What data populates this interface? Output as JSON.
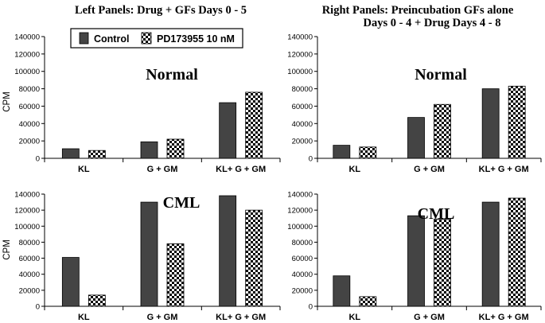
{
  "figure": {
    "left_heading": "Left Panels: Drug + GFs Days 0 - 5",
    "right_heading_line1": "Right Panels: Preincubation GFs alone",
    "right_heading_line2": "Days 0 - 4 + Drug Days 4 - 8",
    "legend": [
      {
        "name": "Control",
        "color": "#444444",
        "pattern": "solid"
      },
      {
        "name": "PD173955 10 nM",
        "color": "#000000",
        "pattern": "checker"
      }
    ]
  },
  "chart_data": [
    {
      "type": "bar",
      "panel": "top-left",
      "title": "Normal",
      "ylabel": "CPM",
      "categories": [
        "KL",
        "G + GM",
        "KL+ G + GM"
      ],
      "ylim": [
        0,
        140000
      ],
      "yticks": [
        0,
        20000,
        40000,
        60000,
        80000,
        100000,
        120000,
        140000
      ],
      "series": [
        {
          "name": "Control",
          "values": [
            11000,
            19000,
            64000
          ]
        },
        {
          "name": "PD173955 10 nM",
          "values": [
            9000,
            22000,
            76000
          ]
        }
      ]
    },
    {
      "type": "bar",
      "panel": "top-right",
      "title": "Normal",
      "ylabel": "",
      "categories": [
        "KL",
        "G + GM",
        "KL+ G + GM"
      ],
      "ylim": [
        0,
        140000
      ],
      "yticks": [
        0,
        20000,
        40000,
        60000,
        80000,
        100000,
        120000,
        140000
      ],
      "series": [
        {
          "name": "Control",
          "values": [
            15000,
            47000,
            80000
          ]
        },
        {
          "name": "PD173955 10 nM",
          "values": [
            13000,
            62000,
            83000
          ]
        }
      ]
    },
    {
      "type": "bar",
      "panel": "bottom-left",
      "title": "CML",
      "ylabel": "CPM",
      "categories": [
        "KL",
        "G + GM",
        "KL+ G + GM"
      ],
      "ylim": [
        0,
        140000
      ],
      "yticks": [
        0,
        20000,
        40000,
        60000,
        80000,
        100000,
        120000,
        140000
      ],
      "series": [
        {
          "name": "Control",
          "values": [
            61000,
            130000,
            138000
          ]
        },
        {
          "name": "PD173955 10 nM",
          "values": [
            14000,
            78000,
            120000
          ]
        }
      ]
    },
    {
      "type": "bar",
      "panel": "bottom-right",
      "title": "CML",
      "ylabel": "",
      "categories": [
        "KL",
        "G + GM",
        "KL+ G + GM"
      ],
      "ylim": [
        0,
        140000
      ],
      "yticks": [
        0,
        20000,
        40000,
        60000,
        80000,
        100000,
        120000,
        140000
      ],
      "series": [
        {
          "name": "Control",
          "values": [
            38000,
            113000,
            130000
          ]
        },
        {
          "name": "PD173955 10 nM",
          "values": [
            12000,
            109000,
            135000
          ]
        }
      ]
    }
  ]
}
